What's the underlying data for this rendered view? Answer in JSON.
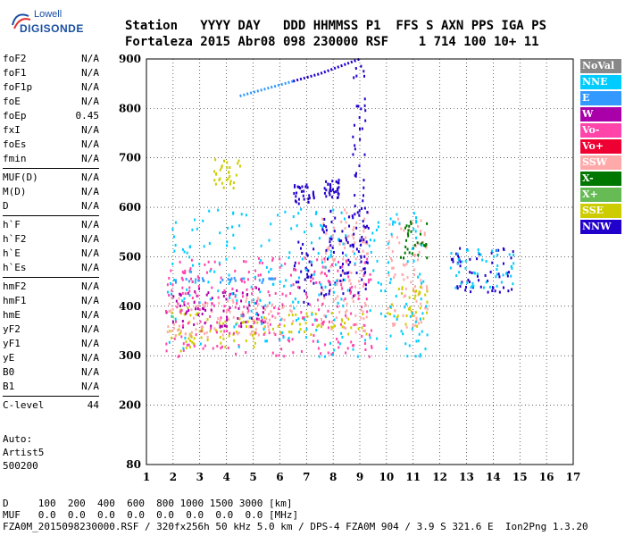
{
  "logo": {
    "line1": "Lowell",
    "line2": "DIGISONDE"
  },
  "header": {
    "line1": "Station   YYYY DAY   DDD HHMMSS P1  FFS S AXN PPS IGA PS",
    "line2": "Fortaleza 2015 Abr08 098 230000 RSF    1 714 100 10+ 11"
  },
  "params_groups": [
    [
      [
        "foF2",
        "N/A"
      ],
      [
        "foF1",
        "N/A"
      ],
      [
        "foF1p",
        "N/A"
      ],
      [
        "foE",
        "N/A"
      ],
      [
        "foEp",
        "0.45"
      ],
      [
        "fxI",
        "N/A"
      ],
      [
        "foEs",
        "N/A"
      ],
      [
        "fmin",
        "N/A"
      ]
    ],
    [
      [
        "MUF(D)",
        "N/A"
      ],
      [
        "M(D)",
        "N/A"
      ],
      [
        "D",
        "N/A"
      ]
    ],
    [
      [
        "h`F",
        "N/A"
      ],
      [
        "h`F2",
        "N/A"
      ],
      [
        "h`E",
        "N/A"
      ],
      [
        "h`Es",
        "N/A"
      ]
    ],
    [
      [
        "hmF2",
        "N/A"
      ],
      [
        "hmF1",
        "N/A"
      ],
      [
        "hmE",
        "N/A"
      ],
      [
        "yF2",
        "N/A"
      ],
      [
        "yF1",
        "N/A"
      ],
      [
        "yE",
        "N/A"
      ],
      [
        "B0",
        "N/A"
      ],
      [
        "B1",
        "N/A"
      ]
    ],
    [
      [
        "C-level",
        "44"
      ]
    ]
  ],
  "extra": {
    "auto": "Auto:",
    "artist": "Artist5",
    "code": "500200"
  },
  "legend": [
    {
      "label": "NoVal",
      "color": "#888888"
    },
    {
      "label": "NNE",
      "color": "#00ccff"
    },
    {
      "label": "E",
      "color": "#3399ff"
    },
    {
      "label": "W",
      "color": "#aa00aa"
    },
    {
      "label": "Vo-",
      "color": "#ff44aa"
    },
    {
      "label": "Vo+",
      "color": "#ee0033"
    },
    {
      "label": "SSW",
      "color": "#ffaaaa"
    },
    {
      "label": "X-",
      "color": "#007700"
    },
    {
      "label": "X+",
      "color": "#66bb55"
    },
    {
      "label": "SSE",
      "color": "#cccc00"
    },
    {
      "label": "NNW",
      "color": "#2200cc"
    }
  ],
  "footer": {
    "line1": "D     100  200  400  600  800 1000 1500 3000 [km]",
    "line2": "MUF   0.0  0.0  0.0  0.0  0.0  0.0  0.0  0.0 [MHz]",
    "line3": "FZA0M_2015098230000.RSF / 320fx256h 50 kHz 5.0 km / DPS-4 FZA0M 904 / 3.9 S 321.6 E  Ion2Png 1.3.20"
  },
  "chart_data": {
    "type": "scatter",
    "xlim": [
      1,
      17
    ],
    "ylim": [
      80,
      900
    ],
    "x_ticks": [
      1,
      2,
      3,
      4,
      5,
      6,
      7,
      8,
      9,
      10,
      11,
      12,
      13,
      14,
      15,
      16,
      17
    ],
    "y_ticks": [
      80,
      200,
      300,
      400,
      500,
      600,
      700,
      800,
      900
    ],
    "grid": true,
    "clusters": [
      {
        "x": [
          1.7,
          3.0
        ],
        "y": [
          310,
          400
        ],
        "color": "#cccc00"
      },
      {
        "x": [
          3.0,
          6.0
        ],
        "y": [
          320,
          380
        ],
        "color": "#cccc00"
      },
      {
        "x": [
          6.0,
          9.3
        ],
        "y": [
          345,
          390
        ],
        "color": "#cccc00"
      },
      {
        "x": [
          1.7,
          6.5
        ],
        "y": [
          340,
          420
        ],
        "color": "#ffaaaa"
      },
      {
        "x": [
          1.7,
          5.5
        ],
        "y": [
          360,
          440
        ],
        "color": "#aa00aa"
      },
      {
        "x": [
          7.5,
          9.3
        ],
        "y": [
          350,
          600
        ],
        "color": "#ffaaaa"
      },
      {
        "x": [
          7.5,
          9.3
        ],
        "y": [
          420,
          600
        ],
        "color": "#2200cc"
      },
      {
        "x": [
          6.5,
          7.3
        ],
        "y": [
          400,
          540
        ],
        "color": "#2200cc"
      },
      {
        "x": [
          6.5,
          7.3
        ],
        "y": [
          610,
          650
        ],
        "color": "#2200cc"
      },
      {
        "x": [
          7.6,
          8.2
        ],
        "y": [
          620,
          660
        ],
        "color": "#2200cc"
      },
      {
        "x": [
          8.7,
          9.2
        ],
        "y": [
          500,
          900
        ],
        "color": "#2200cc"
      },
      {
        "x": [
          10.0,
          11.5
        ],
        "y": [
          360,
          580
        ],
        "color": "#ffaaaa"
      },
      {
        "x": [
          10.0,
          11.5
        ],
        "y": [
          360,
          450
        ],
        "color": "#cccc00"
      },
      {
        "x": [
          10.5,
          11.5
        ],
        "y": [
          500,
          580
        ],
        "color": "#007700"
      },
      {
        "x": [
          12.3,
          14.8
        ],
        "y": [
          430,
          520
        ],
        "color": "#2200cc"
      },
      {
        "x": [
          12.3,
          14.8
        ],
        "y": [
          440,
          520
        ],
        "color": "#00ccff"
      },
      {
        "x": [
          3.5,
          4.5
        ],
        "y": [
          640,
          700
        ],
        "color": "#cccc00"
      },
      {
        "x": [
          2.0,
          6.0
        ],
        "y": [
          450,
          460
        ],
        "color": "#3399ff"
      },
      {
        "x": [
          1.7,
          9.5
        ],
        "y": [
          300,
          500
        ],
        "color": "#ff44aa"
      },
      {
        "x": [
          1.7,
          11.5
        ],
        "y": [
          300,
          600
        ],
        "color": "#00ccff"
      }
    ],
    "traces": [
      {
        "name": "NNW trace",
        "color": "#2200cc",
        "points": [
          [
            6.5,
            855
          ],
          [
            7.5,
            870
          ],
          [
            8.5,
            890
          ],
          [
            9.0,
            900
          ]
        ]
      },
      {
        "name": "E trace",
        "color": "#3399ff",
        "points": [
          [
            4.5,
            825
          ],
          [
            5.5,
            840
          ],
          [
            6.5,
            855
          ]
        ]
      }
    ]
  }
}
